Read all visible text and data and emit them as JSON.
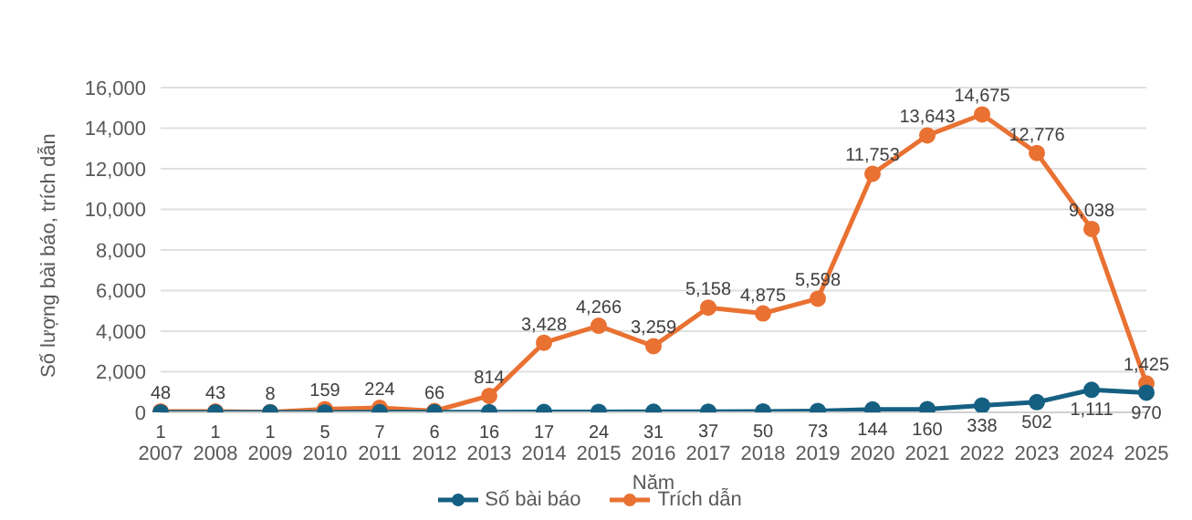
{
  "chart_data": {
    "type": "line",
    "xlabel": "Năm",
    "ylabel": "Số lượng bài báo, trích dẫn",
    "categories": [
      "2007",
      "2008",
      "2009",
      "2010",
      "2011",
      "2012",
      "2013",
      "2014",
      "2015",
      "2016",
      "2017",
      "2018",
      "2019",
      "2020",
      "2021",
      "2022",
      "2023",
      "2024",
      "2025"
    ],
    "series": [
      {
        "name": "Số bài báo",
        "color": "#156082",
        "values": [
          1,
          1,
          1,
          5,
          7,
          6,
          16,
          17,
          24,
          31,
          37,
          50,
          73,
          144,
          160,
          338,
          502,
          1111,
          970
        ],
        "value_labels": [
          "1",
          "1",
          "1",
          "5",
          "7",
          "6",
          "16",
          "17",
          "24",
          "31",
          "37",
          "50",
          "73",
          "144",
          "160",
          "338",
          "502",
          "1,111",
          "970"
        ]
      },
      {
        "name": "Trích dẫn",
        "color": "#e97132",
        "values": [
          48,
          43,
          8,
          159,
          224,
          66,
          814,
          3428,
          4266,
          3259,
          5158,
          4875,
          5598,
          11753,
          13643,
          14675,
          12776,
          9038,
          1425
        ],
        "value_labels": [
          "48",
          "43",
          "8",
          "159",
          "224",
          "66",
          "814",
          "3,428",
          "4,266",
          "3,259",
          "5,158",
          "4,875",
          "5,598",
          "11,753",
          "13,643",
          "14,675",
          "12,776",
          "9,038",
          "1,425"
        ]
      }
    ],
    "ylim": [
      0,
      16000
    ],
    "yticks": [
      0,
      {
        "value": 2000,
        "label": "2,000"
      },
      {
        "value": 4000,
        "label": "4,000"
      },
      {
        "value": 6000,
        "label": "6,000"
      },
      {
        "value": 8000,
        "label": "8,000"
      },
      {
        "value": 10000,
        "label": "10,000"
      },
      {
        "value": 12000,
        "label": "12,000"
      },
      {
        "value": 14000,
        "label": "14,000"
      },
      {
        "value": 16000,
        "label": "16,000"
      }
    ],
    "grid": "y",
    "legend": "bottom",
    "marker": "circle"
  }
}
